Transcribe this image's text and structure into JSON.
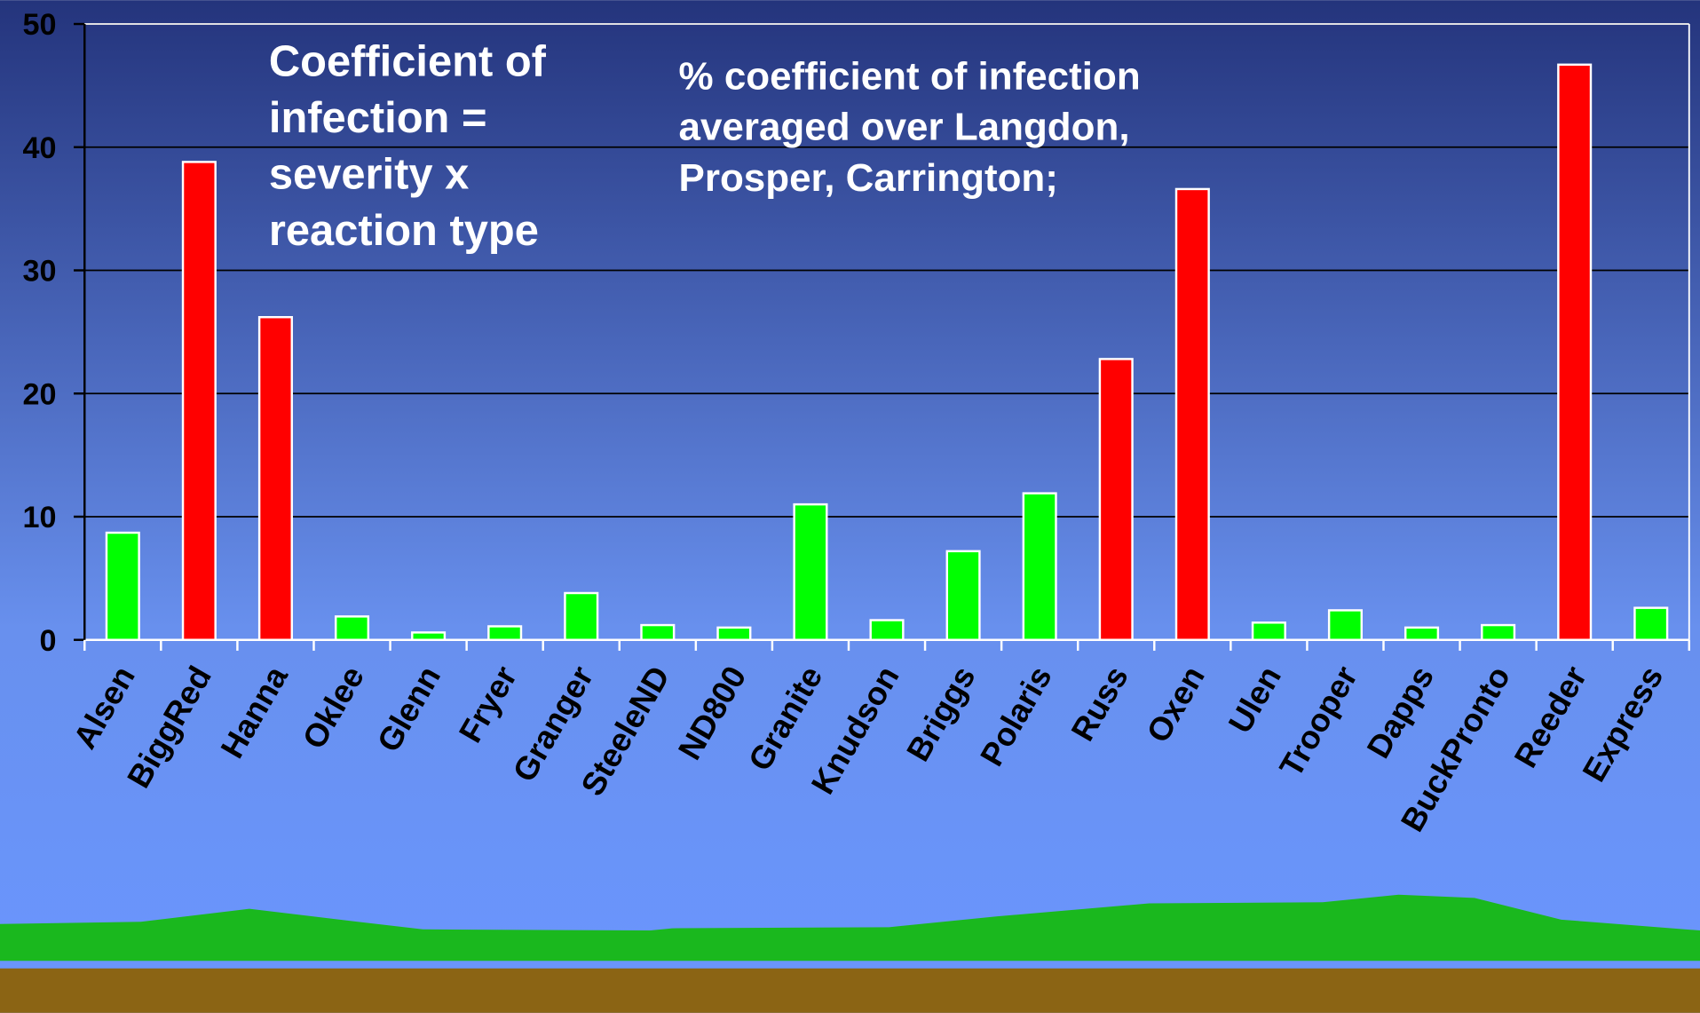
{
  "chart_data": {
    "type": "bar",
    "annotations": [
      [
        "Coefficient of",
        "infection =",
        "severity x",
        "reaction type"
      ],
      [
        "% coefficient of infection",
        "averaged over Langdon,",
        "Prosper, Carrington;"
      ]
    ],
    "categories": [
      "Alsen",
      "BiggRed",
      "Hanna",
      "Oklee",
      "Glenn",
      "Fryer",
      "Granger",
      "SteeleND",
      "ND800",
      "Granite",
      "Knudson",
      "Briggs",
      "Polaris",
      "Russ",
      "Oxen",
      "Ulen",
      "Trooper",
      "Dapps",
      "BuckPronto",
      "Reeder",
      "Express"
    ],
    "values": [
      8.7,
      38.8,
      26.2,
      1.9,
      0.6,
      1.1,
      3.8,
      1.2,
      1.0,
      11.0,
      1.6,
      7.2,
      11.9,
      22.8,
      36.6,
      1.4,
      2.4,
      1.0,
      1.2,
      46.7,
      2.6
    ],
    "colors": [
      "#00ff00",
      "#ff0000",
      "#ff0000",
      "#00ff00",
      "#00ff00",
      "#00ff00",
      "#00ff00",
      "#00ff00",
      "#00ff00",
      "#00ff00",
      "#00ff00",
      "#00ff00",
      "#00ff00",
      "#ff0000",
      "#ff0000",
      "#00ff00",
      "#00ff00",
      "#00ff00",
      "#00ff00",
      "#ff0000",
      "#00ff00"
    ],
    "ylim": [
      0,
      50
    ],
    "yticks": [
      0,
      10,
      20,
      30,
      40,
      50
    ],
    "grid": true
  }
}
